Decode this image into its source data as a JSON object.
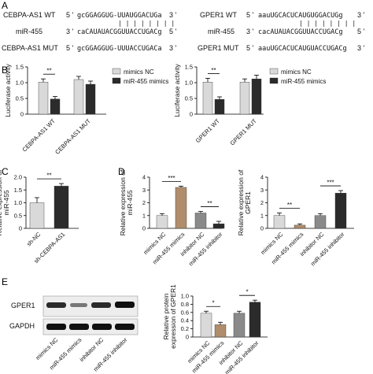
{
  "panels": {
    "A": "A",
    "B": "B",
    "C": "C",
    "D": "D",
    "E": "E"
  },
  "sequences": {
    "left": {
      "wt_label": "CEBPA-AS1 WT",
      "wt_seq": "gcGGAGGUG-UUAUGGACUGa",
      "mir_label": "miR-455",
      "mir_seq": "caCAUAUACGGUUACCUGACg",
      "mut_label": "CEBPA-AS1 MUT",
      "mut_seq": "gcGGAGGUG-UUUACCUGACa",
      "pairs": "| | | | | | | |"
    },
    "right": {
      "wt_label": "GPER1 WT",
      "wt_seq": "aauUGCACUCAUGUGGACUGg",
      "mir_label": "miR-455",
      "mir_seq": "cacAUAUACGGUUACCUGACg",
      "mut_label": "GPER1 MUT",
      "mut_seq": "aauUGCACUCAUGUACCUGACg",
      "pairs": "| | | | | | | |"
    },
    "p5": "5 '",
    "p3": "3 '"
  },
  "colors": {
    "light": "#d9d9d9",
    "dark": "#2b2b2b",
    "tan": "#b08d6c",
    "gray": "#8a8a8a"
  },
  "chart_data": [
    {
      "id": "B_left",
      "type": "bar",
      "ylabel": "Luciferase activity",
      "ylim": [
        0,
        1.5
      ],
      "yticks": [
        "0",
        "0.5",
        "1.0",
        "1.5"
      ],
      "categories": [
        "CEBPA-AS1 WT",
        "CEBPA-AS1 MUT"
      ],
      "series": [
        {
          "name": "mimics NC",
          "values": [
            1.02,
            1.1
          ]
        },
        {
          "name": "miR-455 mimics",
          "values": [
            0.48,
            0.95
          ]
        }
      ],
      "errors": [
        [
          0.1,
          0.1
        ],
        [
          0.08,
          0.1
        ]
      ],
      "annotations": [
        "**"
      ]
    },
    {
      "id": "B_right",
      "type": "bar",
      "ylabel": "Luciferase activity",
      "ylim": [
        0,
        1.5
      ],
      "yticks": [
        "0",
        "0.5",
        "1.0",
        "1.5"
      ],
      "categories": [
        "GPER1 WT",
        "GPER1 MUT"
      ],
      "series": [
        {
          "name": "mimics NC",
          "values": [
            1.02,
            1.02
          ]
        },
        {
          "name": "miR-455 mimics",
          "values": [
            0.47,
            1.12
          ]
        }
      ],
      "errors": [
        [
          0.12,
          0.1
        ],
        [
          0.08,
          0.12
        ]
      ],
      "annotations": [
        "**"
      ]
    },
    {
      "id": "C",
      "type": "bar",
      "ylabel": "Relative expression of\nmiR-455",
      "ylim": [
        0,
        2.0
      ],
      "yticks": [
        "0",
        "0.5",
        "1.0",
        "1.5",
        "2.0"
      ],
      "categories": [
        "sh-NC",
        "sh-CEBPA-AS1"
      ],
      "values": [
        1.0,
        1.65
      ],
      "errors": [
        0.2,
        0.1
      ],
      "annotations": [
        "**"
      ]
    },
    {
      "id": "D_left",
      "type": "bar",
      "ylabel": "Relative expression of\nmiR-455",
      "ylim": [
        0,
        4
      ],
      "yticks": [
        "0",
        "1",
        "2",
        "3",
        "4"
      ],
      "categories": [
        "mimics NC",
        "miR-455 mimics",
        "inhibitor NC",
        "miR-455 inhibitor"
      ],
      "values": [
        1.0,
        3.2,
        1.2,
        0.35
      ],
      "errors": [
        0.15,
        0.1,
        0.12,
        0.2
      ],
      "annotations": [
        "***",
        "**"
      ]
    },
    {
      "id": "D_right",
      "type": "bar",
      "ylabel": "Relative expression of\nGPER1",
      "ylim": [
        0,
        4
      ],
      "yticks": [
        "0",
        "1",
        "2",
        "3",
        "4"
      ],
      "categories": [
        "mimics NC",
        "miR-455 mimics",
        "inhibitor NC",
        "miR-455 inhibitor"
      ],
      "values": [
        1.0,
        0.25,
        1.0,
        2.75
      ],
      "errors": [
        0.2,
        0.1,
        0.15,
        0.2
      ],
      "annotations": [
        "**",
        "***"
      ]
    },
    {
      "id": "E",
      "type": "bar",
      "ylabel": "Relative protein\nexpression of GPER1",
      "ylim": [
        0,
        1.0
      ],
      "yticks": [
        "0",
        "0.2",
        "0.4",
        "0.6",
        "0.8",
        "1.0"
      ],
      "categories": [
        "mimics NC",
        "miR-455 mimics",
        "inhibitor NC",
        "miR-455 inhibitor"
      ],
      "values": [
        0.58,
        0.3,
        0.58,
        0.85
      ],
      "errors": [
        0.05,
        0.06,
        0.05,
        0.05
      ],
      "annotations": [
        "*",
        "*"
      ]
    }
  ],
  "blot": {
    "rows": [
      "GPER1",
      "GAPDH"
    ],
    "lanes": [
      "mimics NC",
      "miR-455 mimics",
      "inhibitor NC",
      "miR-455 inhibitor"
    ]
  }
}
